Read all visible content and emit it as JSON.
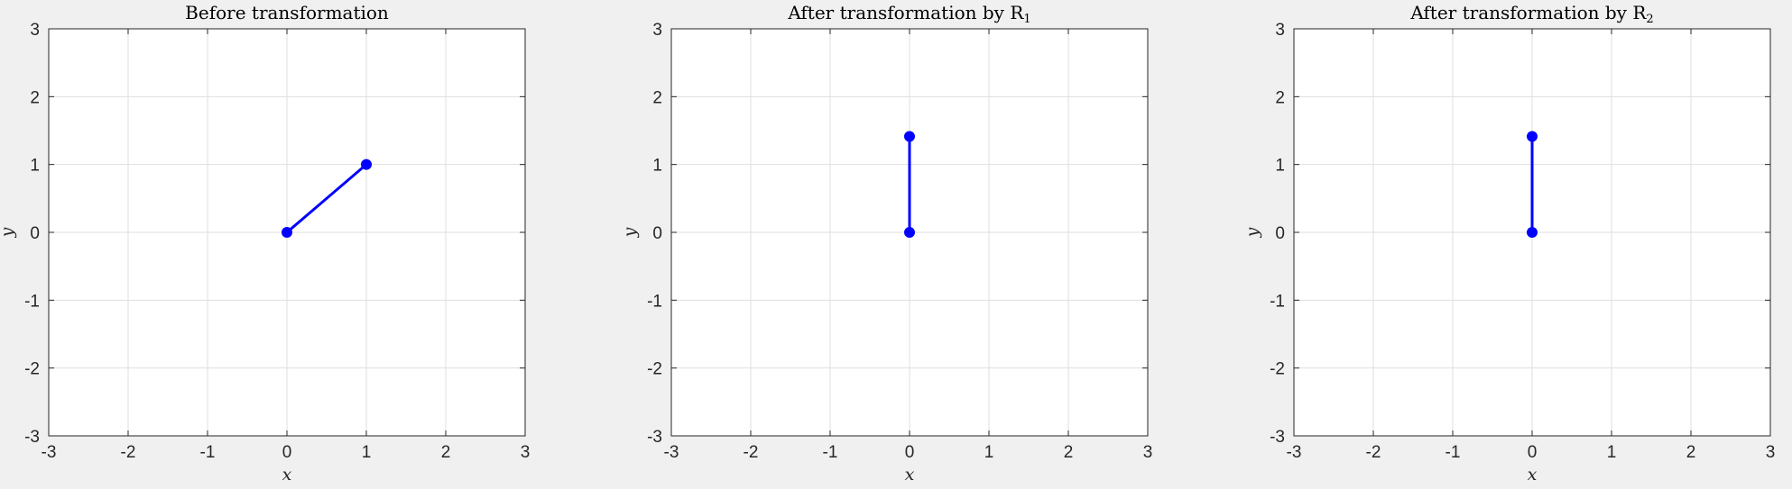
{
  "colors": {
    "figure_bg": "#f0f0f0",
    "axes_bg": "#ffffff",
    "grid": "#dfdfdf",
    "axis": "#262626",
    "series": "#0000ff"
  },
  "chart_data": [
    {
      "type": "line",
      "title": "Before transformation",
      "title_main": "Before transformation",
      "title_sub": "",
      "xlabel": "x",
      "ylabel": "y",
      "xlim": [
        -3,
        3
      ],
      "ylim": [
        -3,
        3
      ],
      "xticks": [
        "-3",
        "-2",
        "-1",
        "0",
        "1",
        "2",
        "3"
      ],
      "yticks": [
        "-3",
        "-2",
        "-1",
        "0",
        "1",
        "2",
        "3"
      ],
      "grid": true,
      "series": [
        {
          "x": [
            0,
            1
          ],
          "y": [
            0,
            1
          ],
          "marker": "circle"
        }
      ]
    },
    {
      "type": "line",
      "title": "After transformation by R1",
      "title_main": "After transformation by R",
      "title_sub": "1",
      "xlabel": "x",
      "ylabel": "y",
      "xlim": [
        -3,
        3
      ],
      "ylim": [
        -3,
        3
      ],
      "xticks": [
        "-3",
        "-2",
        "-1",
        "0",
        "1",
        "2",
        "3"
      ],
      "yticks": [
        "-3",
        "-2",
        "-1",
        "0",
        "1",
        "2",
        "3"
      ],
      "grid": true,
      "series": [
        {
          "x": [
            0,
            0
          ],
          "y": [
            0,
            1.414
          ],
          "marker": "circle"
        }
      ]
    },
    {
      "type": "line",
      "title": "After transformation by R2",
      "title_main": "After transformation by R",
      "title_sub": "2",
      "xlabel": "x",
      "ylabel": "y",
      "xlim": [
        -3,
        3
      ],
      "ylim": [
        -3,
        3
      ],
      "xticks": [
        "-3",
        "-2",
        "-1",
        "0",
        "1",
        "2",
        "3"
      ],
      "yticks": [
        "-3",
        "-2",
        "-1",
        "0",
        "1",
        "2",
        "3"
      ],
      "grid": true,
      "series": [
        {
          "x": [
            0,
            0
          ],
          "y": [
            0,
            1.414
          ],
          "marker": "circle"
        }
      ]
    }
  ]
}
